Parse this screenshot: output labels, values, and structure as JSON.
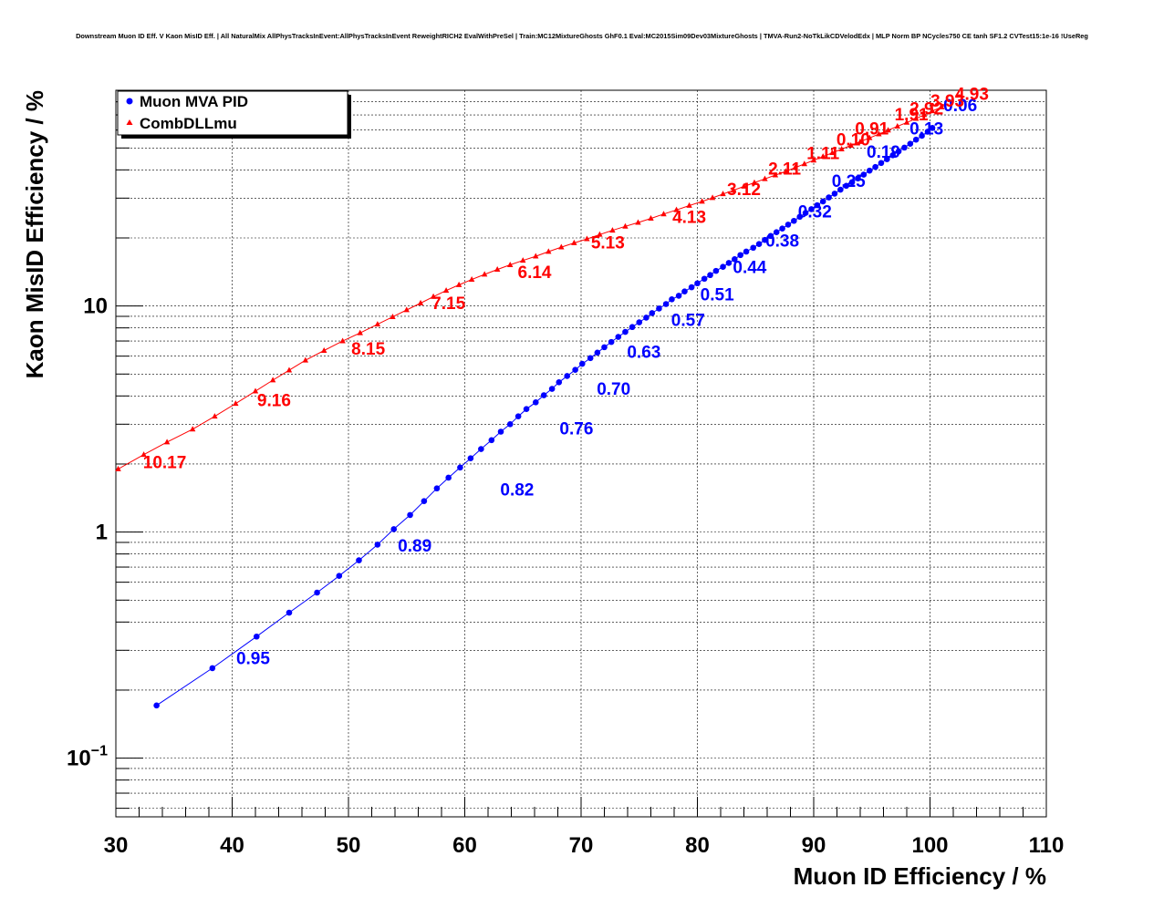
{
  "chart_data": {
    "type": "scatter",
    "title": "Downstream Muon ID Eff. V Kaon MisID Eff. | All NaturalMix AllPhysTracksInEvent:AllPhysTracksInEvent ReweightRICH2 EvalWithPreSel | Train:MC12MixtureGhosts GhF0.1 Eval:MC2015Sim09Dev03MixtureGhosts | TMVA-Run2-NoTkLikCDVelodEdx | MLP Norm BP NCycles750 CE tanh SF1.2 CVTest15:1e-16 !UseReg",
    "xlabel": "Muon ID Efficiency / %",
    "ylabel": "Kaon MisID Efficiency / %",
    "xlim": [
      30,
      110
    ],
    "ylim": [
      0.055,
      90
    ],
    "yscale": "log",
    "x_ticks": [
      {
        "value": 30,
        "label": "30"
      },
      {
        "value": 40,
        "label": "40"
      },
      {
        "value": 50,
        "label": "50"
      },
      {
        "value": 60,
        "label": "60"
      },
      {
        "value": 70,
        "label": "70"
      },
      {
        "value": 80,
        "label": "80"
      },
      {
        "value": 90,
        "label": "90"
      },
      {
        "value": 100,
        "label": "100"
      },
      {
        "value": 110,
        "label": "110"
      }
    ],
    "y_ticks": [
      {
        "value": 0.1,
        "base": "10",
        "exp": "−1"
      },
      {
        "value": 1,
        "base": "1",
        "exp": ""
      },
      {
        "value": 10,
        "base": "10",
        "exp": ""
      }
    ],
    "grid": true,
    "legend_position": "top-left",
    "series": [
      {
        "name": "Muon MVA PID",
        "color": "#0000ff",
        "marker": "circle",
        "x": [
          33.5,
          38.3,
          42.1,
          44.9,
          47.3,
          49.2,
          50.9,
          52.5,
          53.9,
          55.3,
          56.5,
          57.6,
          58.6,
          59.6,
          60.5,
          61.4,
          62.3,
          63.1,
          63.9,
          64.6,
          65.3,
          66.1,
          66.8,
          67.5,
          68.1,
          68.8,
          69.5,
          70.1,
          70.8,
          71.4,
          72.0,
          72.6,
          73.2,
          73.8,
          74.4,
          75.0,
          75.6,
          76.1,
          76.7,
          77.3,
          77.8,
          78.4,
          78.9,
          79.5,
          80.0,
          80.6,
          81.1,
          81.6,
          82.2,
          82.7,
          83.2,
          83.7,
          84.2,
          84.8,
          85.3,
          85.8,
          86.3,
          86.8,
          87.3,
          87.8,
          88.3,
          88.8,
          89.3,
          89.8,
          90.3,
          90.8,
          91.3,
          91.8,
          92.3,
          92.8,
          93.3,
          93.8,
          94.3,
          94.8,
          95.3,
          95.8,
          96.3,
          96.8,
          97.3,
          97.8,
          98.3,
          98.8,
          99.3,
          99.8,
          100.2
        ],
        "y": [
          0.171,
          0.25,
          0.345,
          0.44,
          0.54,
          0.64,
          0.75,
          0.88,
          1.03,
          1.19,
          1.37,
          1.56,
          1.74,
          1.93,
          2.12,
          2.33,
          2.55,
          2.78,
          3.0,
          3.25,
          3.5,
          3.75,
          4.03,
          4.3,
          4.6,
          4.9,
          5.22,
          5.55,
          5.88,
          6.22,
          6.57,
          6.93,
          7.3,
          7.68,
          8.07,
          8.47,
          8.88,
          9.3,
          9.74,
          10.2,
          10.7,
          11.1,
          11.6,
          12.1,
          12.6,
          13.2,
          13.7,
          14.3,
          14.9,
          15.5,
          16.1,
          16.8,
          17.4,
          18.1,
          18.8,
          19.6,
          20.4,
          21.2,
          22.0,
          22.9,
          23.8,
          24.8,
          25.8,
          26.8,
          27.9,
          29.0,
          30.2,
          31.4,
          32.7,
          34.0,
          35.3,
          36.7,
          38.1,
          39.7,
          41.2,
          42.9,
          44.6,
          46.4,
          48.3,
          50.2,
          52.2,
          54.4,
          56.6,
          59.0,
          61.3
        ],
        "annotations": [
          {
            "x": 41.8,
            "y": 0.26,
            "label": "0.95"
          },
          {
            "x": 55.7,
            "y": 0.82,
            "label": "0.89"
          },
          {
            "x": 64.5,
            "y": 1.45,
            "label": "0.82"
          },
          {
            "x": 69.6,
            "y": 2.7,
            "label": "0.76"
          },
          {
            "x": 72.8,
            "y": 4.05,
            "label": "0.70"
          },
          {
            "x": 75.4,
            "y": 5.9,
            "label": "0.63"
          },
          {
            "x": 79.2,
            "y": 8.15,
            "label": "0.57"
          },
          {
            "x": 81.7,
            "y": 10.6,
            "label": "0.51"
          },
          {
            "x": 84.5,
            "y": 14.0,
            "label": "0.44"
          },
          {
            "x": 87.3,
            "y": 18.3,
            "label": "0.38"
          },
          {
            "x": 90.1,
            "y": 24.6,
            "label": "0.32"
          },
          {
            "x": 93.0,
            "y": 33.6,
            "label": "0.25"
          },
          {
            "x": 96.0,
            "y": 45.2,
            "label": "0.19"
          },
          {
            "x": 99.7,
            "y": 57.5,
            "label": "0.13"
          },
          {
            "x": 102.6,
            "y": 72.7,
            "label": "0.06"
          }
        ]
      },
      {
        "name": "CombDLLmu",
        "color": "#ff0000",
        "marker": "triangle",
        "x": [
          30.2,
          32.4,
          34.4,
          36.6,
          38.5,
          40.3,
          42.0,
          43.5,
          44.9,
          46.3,
          47.9,
          49.5,
          51.0,
          52.5,
          53.8,
          55.0,
          56.2,
          57.3,
          58.4,
          59.5,
          60.6,
          61.7,
          62.8,
          63.9,
          65.0,
          66.1,
          67.2,
          68.3,
          69.4,
          70.5,
          71.6,
          72.7,
          73.8,
          74.9,
          76.0,
          77.1,
          78.2,
          79.3,
          80.4,
          81.3,
          82.2,
          83.1,
          84.0,
          84.9,
          85.8,
          86.7,
          87.6,
          88.4,
          89.2,
          90.0,
          90.8,
          91.6,
          92.4,
          93.2,
          94.0,
          94.8,
          95.6,
          96.4,
          97.2,
          98.0,
          98.8,
          99.5,
          100.2,
          101.0
        ],
        "y": [
          1.9,
          2.2,
          2.5,
          2.85,
          3.25,
          3.7,
          4.2,
          4.7,
          5.2,
          5.75,
          6.35,
          7.0,
          7.6,
          8.3,
          8.95,
          9.6,
          10.3,
          11.0,
          11.7,
          12.4,
          13.1,
          13.8,
          14.5,
          15.2,
          15.9,
          16.6,
          17.4,
          18.2,
          19.0,
          19.8,
          20.7,
          21.6,
          22.5,
          23.4,
          24.4,
          25.5,
          26.6,
          27.8,
          29.0,
          30.1,
          31.3,
          32.5,
          33.8,
          35.1,
          36.5,
          37.9,
          39.4,
          40.9,
          42.5,
          44.1,
          45.8,
          47.6,
          49.4,
          51.3,
          53.3,
          55.4,
          57.6,
          59.9,
          62.3,
          64.8,
          67.4,
          70.1,
          72.9,
          75.8
        ],
        "annotations": [
          {
            "x": 34.2,
            "y": 1.92,
            "label": "10.17"
          },
          {
            "x": 43.6,
            "y": 3.6,
            "label": "9.16"
          },
          {
            "x": 51.7,
            "y": 6.1,
            "label": "8.15"
          },
          {
            "x": 58.6,
            "y": 9.7,
            "label": "7.15"
          },
          {
            "x": 66.0,
            "y": 13.3,
            "label": "6.14"
          },
          {
            "x": 72.3,
            "y": 18.0,
            "label": "5.13"
          },
          {
            "x": 79.3,
            "y": 23.3,
            "label": "4.13"
          },
          {
            "x": 84.0,
            "y": 31.0,
            "label": "3.12"
          },
          {
            "x": 87.5,
            "y": 38.2,
            "label": "2.11"
          },
          {
            "x": 90.8,
            "y": 44.7,
            "label": "1.11"
          },
          {
            "x": 93.4,
            "y": 51.2,
            "label": "0.10"
          },
          {
            "x": 95.0,
            "y": 57.5,
            "label": "0.91"
          },
          {
            "x": 98.4,
            "y": 66.2,
            "label": "1.91"
          },
          {
            "x": 99.7,
            "y": 70.5,
            "label": "2.92"
          },
          {
            "x": 101.5,
            "y": 76.3,
            "label": "3.93"
          },
          {
            "x": 103.6,
            "y": 81.5,
            "label": "4.93"
          }
        ]
      }
    ]
  }
}
